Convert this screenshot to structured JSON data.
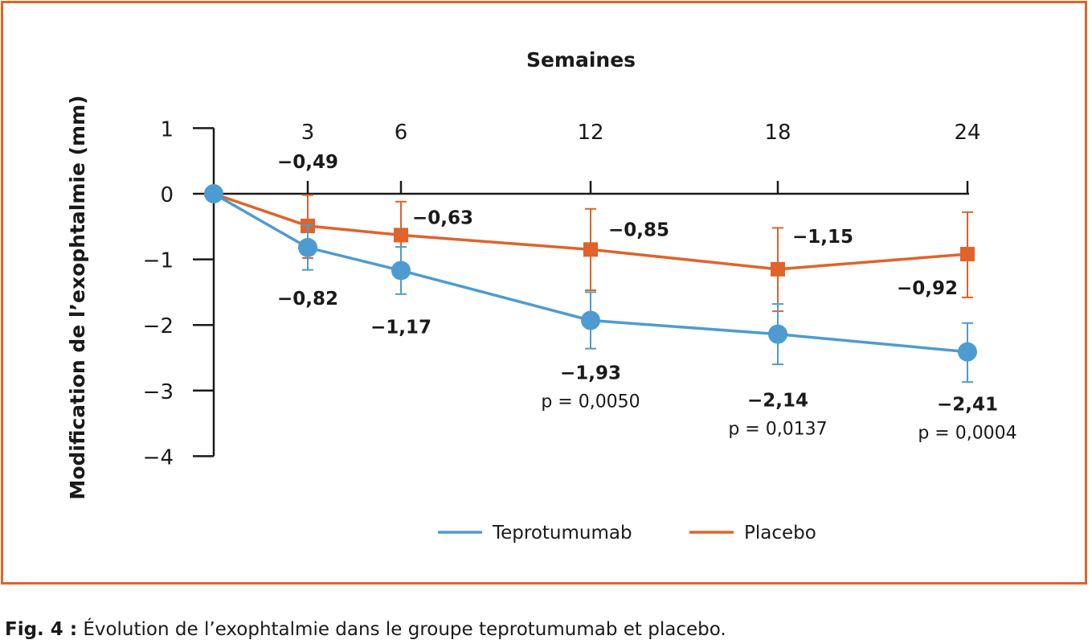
{
  "chart_data": {
    "type": "line",
    "xlabel": "Semaines",
    "ylabel": "Modification de l’exophtalmie (mm)",
    "x": [
      0,
      3,
      6,
      12,
      18,
      24
    ],
    "x_tick_labels": [
      "3",
      "6",
      "12",
      "18",
      "24"
    ],
    "ylim": [
      -4,
      1
    ],
    "y_ticks": [
      1,
      0,
      -1,
      -2,
      -3,
      -4
    ],
    "y_tick_labels": [
      "1",
      "0",
      "−1",
      "−2",
      "−3",
      "−4"
    ],
    "grid": false,
    "legend_position": "bottom",
    "series": [
      {
        "name": "Teprotumumab",
        "color": "#4e9bd2",
        "marker": "circle",
        "values": [
          0,
          -0.82,
          -1.17,
          -1.93,
          -2.14,
          -2.41
        ],
        "error_low": [
          0,
          -1.16,
          -1.53,
          -2.36,
          -2.6,
          -2.87
        ],
        "error_high": [
          0,
          -0.48,
          -0.81,
          -1.5,
          -1.68,
          -1.97
        ],
        "labels": [
          "",
          "−0,82",
          "−1,17",
          "−1,93",
          "−2,14",
          "−2,41"
        ],
        "p_values": [
          "",
          "",
          "",
          "p = 0,0050",
          "p = 0,0137",
          "p = 0,0004"
        ]
      },
      {
        "name": "Placebo",
        "color": "#e0632a",
        "marker": "square",
        "values": [
          0,
          -0.49,
          -0.63,
          -0.85,
          -1.15,
          -0.92
        ],
        "error_low": [
          0,
          -0.98,
          -1.13,
          -1.47,
          -1.79,
          -1.58
        ],
        "error_high": [
          0,
          -0.02,
          -0.12,
          -0.23,
          -0.52,
          -0.28
        ],
        "labels": [
          "",
          "−0,49",
          "−0,63",
          "−0,85",
          "−1,15",
          "−0,92"
        ]
      }
    ]
  },
  "caption": {
    "label": "Fig. 4 :",
    "text": " Évolution de l’exophtalmie dans le groupe teprotumumab et placebo."
  }
}
